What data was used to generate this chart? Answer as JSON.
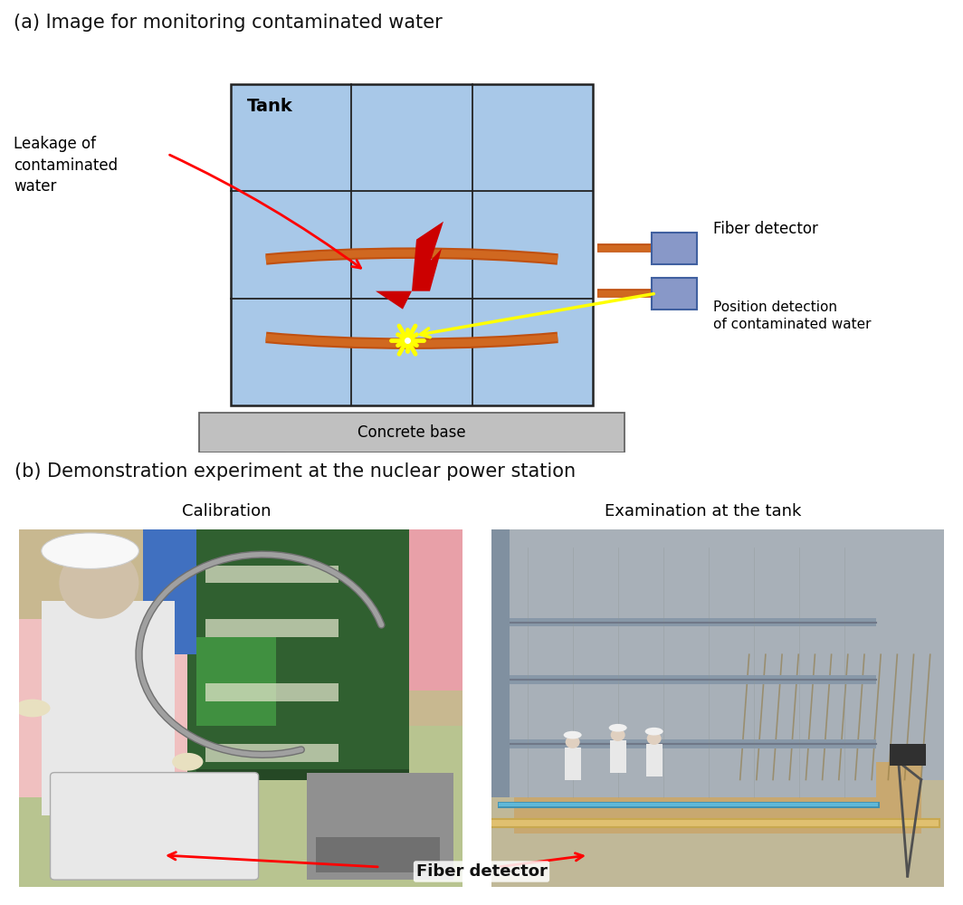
{
  "title_a": "(a) Image for monitoring contaminated water",
  "title_b": "(b) Demonstration experiment at the nuclear power station",
  "label_calibration": "Calibration",
  "label_examination": "Examination at the tank",
  "label_tank": "Tank",
  "label_concrete": "Concrete base",
  "label_leakage": "Leakage of\ncontaminated\nwater",
  "label_fiber_top": "Fiber detector",
  "label_position": "Position detection\nof contaminated water",
  "label_fiber_bottom": "Fiber detector",
  "tank_color": "#a8c8e8",
  "tank_border": "#222222",
  "concrete_color": "#c0c0c0",
  "pillar_color": "#7888a0",
  "fiber_cable_color": "#d06820",
  "fiber_cable_shadow": "#b05010",
  "fiber_box_fill": "#8898c8",
  "fiber_box_edge": "#4060a0",
  "leak_color": "#cc0000",
  "star_color": "#ffff00",
  "bg_color": "#ffffff",
  "ground_colors": [
    "#c85818",
    "#e89050",
    "#f8c898",
    "#fde0c0"
  ],
  "font_size_title": 15,
  "font_size_label": 12,
  "font_size_tank": 14,
  "font_size_sublabel": 13
}
